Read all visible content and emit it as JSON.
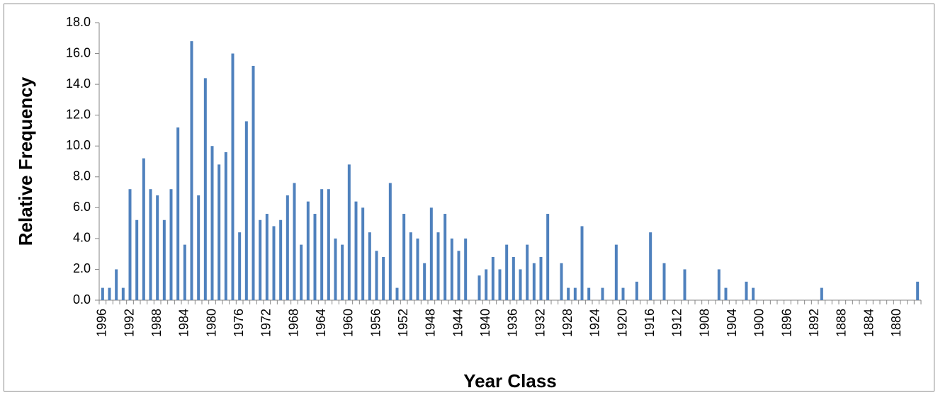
{
  "chart_data": {
    "type": "bar",
    "x_label": "Year Class",
    "y_label": "Relative Frequency",
    "categories": [
      "1996",
      null,
      null,
      null,
      "1992",
      null,
      null,
      null,
      "1988",
      null,
      null,
      null,
      "1984",
      null,
      null,
      null,
      "1980",
      null,
      null,
      null,
      "1976",
      null,
      null,
      null,
      "1972",
      null,
      null,
      null,
      "1968",
      null,
      null,
      null,
      "1964",
      null,
      null,
      null,
      "1960",
      null,
      null,
      null,
      "1956",
      null,
      null,
      null,
      "1952",
      null,
      null,
      null,
      "1948",
      null,
      null,
      null,
      "1944",
      null,
      null,
      null,
      "1940",
      null,
      null,
      null,
      "1936",
      null,
      null,
      null,
      "1932",
      null,
      null,
      null,
      "1928",
      null,
      null,
      null,
      "1924",
      null,
      null,
      null,
      "1920",
      null,
      null,
      null,
      "1916",
      null,
      null,
      null,
      "1912",
      null,
      null,
      null,
      "1908",
      null,
      null,
      null,
      "1904",
      null,
      null,
      null,
      "1900",
      null,
      null,
      null,
      "1896",
      null,
      null,
      null,
      "1892",
      null,
      null,
      null,
      "1888",
      null,
      null,
      null,
      "1884",
      null,
      null,
      null,
      "1880",
      null,
      null,
      null
    ],
    "values": [
      0.8,
      0.8,
      2.0,
      0.8,
      7.2,
      5.2,
      9.2,
      7.2,
      6.8,
      5.2,
      7.2,
      11.2,
      3.6,
      16.8,
      6.8,
      14.4,
      10.0,
      8.8,
      9.6,
      16.0,
      4.4,
      11.6,
      15.2,
      5.2,
      5.6,
      4.8,
      5.2,
      6.8,
      7.6,
      3.6,
      6.4,
      5.6,
      7.2,
      7.2,
      4.0,
      3.6,
      8.8,
      6.4,
      6.0,
      4.4,
      3.2,
      2.8,
      7.6,
      0.8,
      5.6,
      4.4,
      4.0,
      2.4,
      6.0,
      4.4,
      5.6,
      4.0,
      3.2,
      4.0,
      0,
      1.6,
      2.0,
      2.8,
      2.0,
      3.6,
      2.8,
      2.0,
      3.6,
      2.4,
      2.8,
      5.6,
      0,
      2.4,
      0.8,
      0.8,
      4.8,
      0.8,
      0,
      0.8,
      0,
      3.6,
      0.8,
      0,
      1.2,
      0,
      4.4,
      0,
      2.4,
      0,
      0,
      2.0,
      0,
      0,
      0,
      0,
      2.0,
      0.8,
      0,
      0,
      1.2,
      0.8,
      0,
      0,
      0,
      0,
      0,
      0,
      0,
      0,
      0,
      0.8,
      0,
      0,
      0,
      0,
      0,
      0,
      0,
      0,
      0,
      0,
      0,
      0,
      0,
      1.2
    ],
    "color": "#4f81bd",
    "ylim": [
      0,
      18
    ],
    "yticks": [
      {
        "value": 0,
        "label": "0.0"
      },
      {
        "value": 2,
        "label": "2.0"
      },
      {
        "value": 4,
        "label": "4.0"
      },
      {
        "value": 6,
        "label": "6.0"
      },
      {
        "value": 8,
        "label": "8.0"
      },
      {
        "value": 10,
        "label": "10.0"
      },
      {
        "value": 12,
        "label": "12.0"
      },
      {
        "value": 14,
        "label": "14.0"
      },
      {
        "value": 16,
        "label": "16.0"
      },
      {
        "value": 18,
        "label": "18.0"
      }
    ],
    "grid": false
  }
}
